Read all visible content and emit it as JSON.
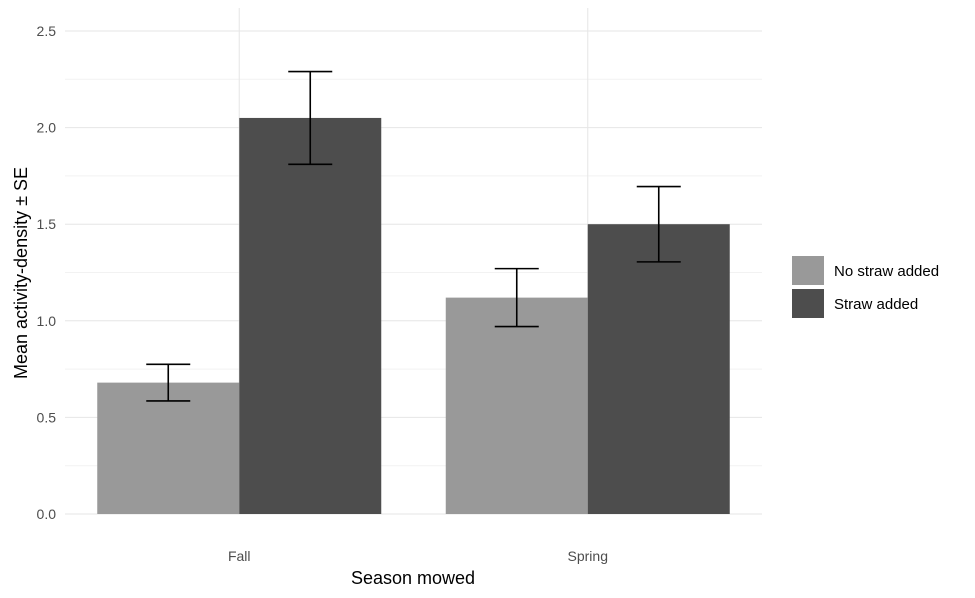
{
  "chart_data": {
    "type": "bar",
    "categories": [
      "Fall",
      "Spring"
    ],
    "series": [
      {
        "name": "No straw added",
        "color": "#999999",
        "values": [
          0.68,
          1.12
        ],
        "se": [
          0.095,
          0.15
        ]
      },
      {
        "name": "Straw added",
        "color": "#4d4d4d",
        "values": [
          2.05,
          1.5
        ],
        "se": [
          0.24,
          0.195
        ]
      }
    ],
    "xlabel": "Season mowed",
    "ylabel": "Mean activity-density ± SE",
    "ylim": [
      0,
      2.5
    ],
    "yticks": [
      "0.0",
      "0.5",
      "1.0",
      "1.5",
      "2.0",
      "2.5"
    ],
    "grid": true,
    "legend_position": "right"
  }
}
